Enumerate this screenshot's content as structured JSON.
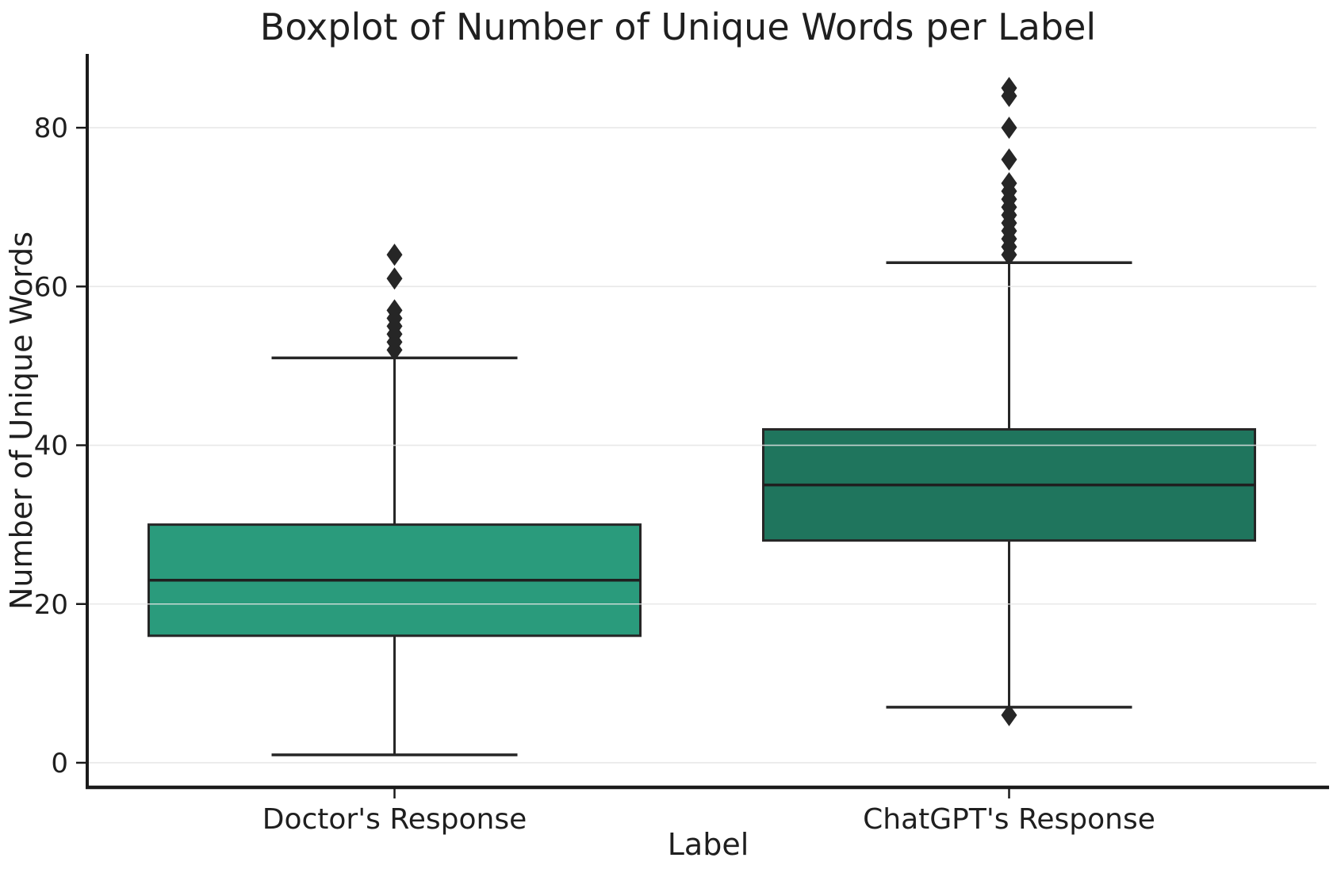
{
  "chart_data": {
    "type": "box",
    "title": "Boxplot of Number of Unique Words per Label",
    "xlabel": "Label",
    "ylabel": "Number of Unique Words",
    "categories": [
      "Doctor's Response",
      "ChatGPT's Response"
    ],
    "yticks": [
      0,
      20,
      40,
      60,
      80
    ],
    "ylim": [
      -3.1,
      89.3
    ],
    "grid": "horizontal-only",
    "legend": "none",
    "series": [
      {
        "label": "Doctor's Response",
        "box_color": "#2a9b7c",
        "whisker_low": 1,
        "q1": 16,
        "median": 23,
        "q3": 30,
        "whisker_high": 51,
        "outliers": [
          52,
          53,
          54,
          55,
          56,
          57,
          61,
          64
        ]
      },
      {
        "label": "ChatGPT's Response",
        "box_color": "#1f755d",
        "whisker_low": 7,
        "q1": 28,
        "median": 35,
        "q3": 42,
        "whisker_high": 63,
        "outliers": [
          6,
          64,
          65,
          66,
          67,
          68,
          69,
          70,
          71,
          72,
          73,
          76,
          80,
          84,
          85
        ]
      }
    ],
    "colors": {
      "edge": "#262626",
      "median": "#1f1f1f",
      "grid": "#e4e4e4",
      "text": "#1f1f1f",
      "spine": "#1a1a1a",
      "background": "#ffffff",
      "outlier": "#262626"
    }
  }
}
